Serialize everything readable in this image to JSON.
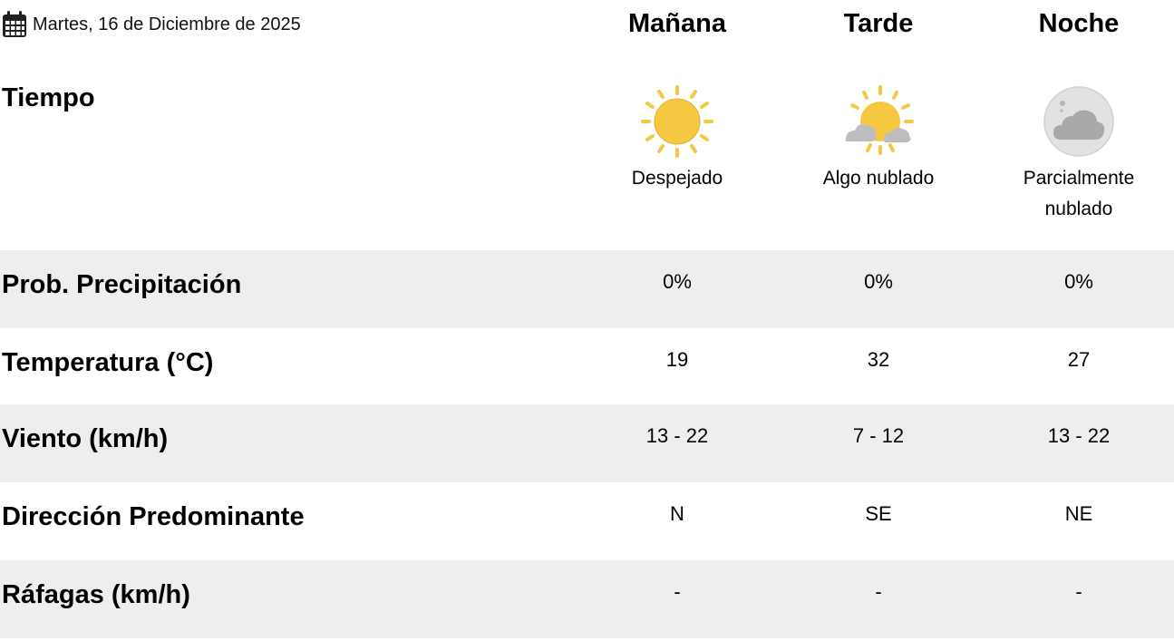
{
  "date": {
    "icon": "calendar-icon",
    "text": "Martes, 16 de Diciembre de 2025"
  },
  "periods": [
    "Mañana",
    "Tarde",
    "Noche"
  ],
  "weather": {
    "label": "Tiempo",
    "items": [
      {
        "icon": "sun-icon",
        "desc": "Despejado"
      },
      {
        "icon": "sun-cloud-icon",
        "desc": "Algo nublado"
      },
      {
        "icon": "moon-cloud-icon",
        "desc": "Parcialmente nublado"
      }
    ]
  },
  "rows": [
    {
      "label": "Prob. Precipitación",
      "values": [
        "0%",
        "0%",
        "0%"
      ]
    },
    {
      "label": "Temperatura (°C)",
      "values": [
        "19",
        "32",
        "27"
      ]
    },
    {
      "label": "Viento (km/h)",
      "values": [
        "13 - 22",
        "7 - 12",
        "13 - 22"
      ]
    },
    {
      "label": "Dirección Predominante",
      "values": [
        "N",
        "SE",
        "NE"
      ]
    },
    {
      "label": "Ráfagas (km/h)",
      "values": [
        "-",
        "-",
        "-"
      ]
    }
  ],
  "colors": {
    "row_alt": "#eeeeee",
    "sun": "#f5c842",
    "cloud": "#b8b8b8",
    "moon": "#e2e2e2"
  }
}
